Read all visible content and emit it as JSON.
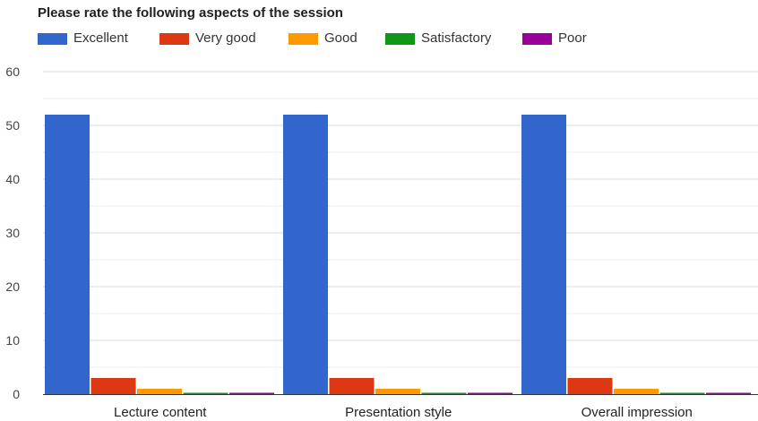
{
  "chart_data": {
    "type": "bar",
    "title": "Please rate the following aspects of the session",
    "categories": [
      "Lecture content",
      "Presentation style",
      "Overall impression"
    ],
    "series": [
      {
        "name": "Excellent",
        "color": "#3366cc",
        "values": [
          52,
          52,
          52
        ]
      },
      {
        "name": "Very good",
        "color": "#dc3912",
        "values": [
          3,
          3,
          3
        ]
      },
      {
        "name": "Good",
        "color": "#ff9900",
        "values": [
          1,
          1,
          1
        ]
      },
      {
        "name": "Satisfactory",
        "color": "#109618",
        "values": [
          0,
          0,
          0
        ]
      },
      {
        "name": "Poor",
        "color": "#990099",
        "values": [
          0,
          0,
          0
        ]
      }
    ],
    "ylim": [
      0,
      60
    ],
    "yticks": [
      0,
      10,
      20,
      30,
      40,
      50,
      60
    ],
    "grid": true,
    "legend_position": "top-left",
    "xlabel": "",
    "ylabel": ""
  }
}
